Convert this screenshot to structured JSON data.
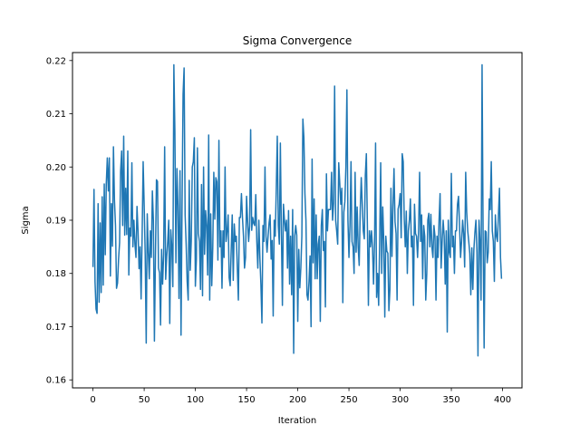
{
  "chart_data": {
    "type": "line",
    "title": "Sigma Convergence",
    "xlabel": "Iteration",
    "ylabel": "Sigma",
    "xlim": [
      -20,
      419
    ],
    "ylim": [
      0.1585,
      0.2215
    ],
    "xticks": [
      0,
      50,
      100,
      150,
      200,
      250,
      300,
      350,
      400
    ],
    "yticks": [
      0.16,
      0.17,
      0.18,
      0.19,
      0.2,
      0.21,
      0.22
    ],
    "ytick_labels": [
      "0.16",
      "0.17",
      "0.18",
      "0.19",
      "0.20",
      "0.21",
      "0.22"
    ],
    "grid": false,
    "legend": "none",
    "color": "#1f77b4",
    "series": [
      {
        "x_start": 0,
        "x_step": 1,
        "values": [
          0.1812,
          0.1958,
          0.1784,
          0.1733,
          0.1725,
          0.1931,
          0.1746,
          0.1895,
          0.1764,
          0.1944,
          0.1778,
          0.1968,
          0.1835,
          0.1969,
          0.2017,
          0.1955,
          0.2017,
          0.1795,
          0.1931,
          0.1851,
          0.2038,
          0.1937,
          0.189,
          0.1772,
          0.1782,
          0.1827,
          0.1858,
          0.1993,
          0.203,
          0.189,
          0.2058,
          0.1872,
          0.196,
          0.1873,
          0.203,
          0.1797,
          0.1885,
          0.187,
          0.2008,
          0.185,
          0.19,
          0.1855,
          0.183,
          0.1926,
          0.188,
          0.1809,
          0.185,
          0.1752,
          0.187,
          0.201,
          0.1928,
          0.1835,
          0.1669,
          0.1912,
          0.1842,
          0.179,
          0.188,
          0.183,
          0.1955,
          0.19,
          0.1673,
          0.1832,
          0.1976,
          0.1973,
          0.181,
          0.1801,
          0.1703,
          0.1845,
          0.178,
          0.1835,
          0.2038,
          0.1789,
          0.1832,
          0.186,
          0.19,
          0.1706,
          0.1882,
          0.185,
          0.1775,
          0.2192,
          0.2066,
          0.182,
          0.1997,
          0.1928,
          0.1753,
          0.1993,
          0.1684,
          0.193,
          0.2137,
          0.2186,
          0.191,
          0.1855,
          0.1785,
          0.175,
          0.1975,
          0.1806,
          0.1861,
          0.2,
          0.201,
          0.2055,
          0.1776,
          0.1827,
          0.2036,
          0.1875,
          0.186,
          0.177,
          0.1967,
          0.1758,
          0.2,
          0.1836,
          0.1918,
          0.189,
          0.1797,
          0.206,
          0.175,
          0.1912,
          0.1777,
          0.185,
          0.199,
          0.1902,
          0.198,
          0.1972,
          0.1825,
          0.205,
          0.185,
          0.188,
          0.1772,
          0.188,
          0.183,
          0.2,
          0.186,
          0.188,
          0.191,
          0.1792,
          0.1777,
          0.1845,
          0.191,
          0.1787,
          0.1893,
          0.186,
          0.187,
          0.1808,
          0.175,
          0.1905,
          0.1905,
          0.195,
          0.1905,
          0.187,
          0.181,
          0.183,
          0.1945,
          0.19,
          0.186,
          0.1889,
          0.207,
          0.1881,
          0.1905,
          0.1894,
          0.189,
          0.1948,
          0.186,
          0.181,
          0.19,
          0.183,
          0.178,
          0.1707,
          0.189,
          0.186,
          0.2,
          0.187,
          0.184,
          0.187,
          0.1895,
          0.191,
          0.1827,
          0.1862,
          0.172,
          0.19,
          0.187,
          0.1957,
          0.2058,
          0.189,
          0.1855,
          0.2045,
          0.188,
          0.174,
          0.193,
          0.19,
          0.188,
          0.19,
          0.181,
          0.1918,
          0.178,
          0.187,
          0.176,
          0.192,
          0.165,
          0.187,
          0.189,
          0.1872,
          0.171,
          0.1845,
          0.1773,
          0.181,
          0.187,
          0.209,
          0.2055,
          0.195,
          0.19,
          0.176,
          0.175,
          0.1785,
          0.1833,
          0.17,
          0.2015,
          0.182,
          0.194,
          0.179,
          0.191,
          0.179,
          0.1855,
          0.187,
          0.171,
          0.189,
          0.192,
          0.1843,
          0.186,
          0.1737,
          0.1987,
          0.188,
          0.192,
          0.192,
          0.192,
          0.199,
          0.19,
          0.1932,
          0.2152,
          0.19,
          0.188,
          0.1855,
          0.2008,
          0.197,
          0.193,
          0.196,
          0.1745,
          0.1915,
          0.1935,
          0.2,
          0.2145,
          0.19,
          0.183,
          0.189,
          0.201,
          0.186,
          0.185,
          0.18,
          0.199,
          0.184,
          0.1925,
          0.185,
          0.1815,
          0.1917,
          0.198,
          0.193,
          0.188,
          0.1865,
          0.1985,
          0.2025,
          0.189,
          0.174,
          0.188,
          0.185,
          0.188,
          0.185,
          0.178,
          0.1857,
          0.2045,
          0.1755,
          0.18,
          0.174,
          0.186,
          0.2008,
          0.18,
          0.1925,
          0.186,
          0.1718,
          0.187,
          0.1842,
          0.1838,
          0.173,
          0.177,
          0.196,
          0.1832,
          0.1927,
          0.1997,
          0.1897,
          0.1875,
          0.175,
          0.1921,
          0.193,
          0.195,
          0.1867,
          0.2025,
          0.201,
          0.1902,
          0.185,
          0.1917,
          0.18,
          0.188,
          0.19,
          0.194,
          0.185,
          0.187,
          0.174,
          0.193,
          0.1875,
          0.187,
          0.183,
          0.188,
          0.199,
          0.186,
          0.191,
          0.179,
          0.189,
          0.187,
          0.175,
          0.18,
          0.19,
          0.1913,
          0.185,
          0.1911,
          0.185,
          0.183,
          0.189,
          0.187,
          0.175,
          0.187,
          0.183,
          0.19,
          0.195,
          0.181,
          0.186,
          0.19,
          0.187,
          0.178,
          0.188,
          0.169,
          0.19,
          0.184,
          0.183,
          0.1988,
          0.185,
          0.187,
          0.18,
          0.188,
          0.188,
          0.193,
          0.1945,
          0.189,
          0.183,
          0.186,
          0.19,
          0.1875,
          0.1812,
          0.199,
          0.1915,
          0.188,
          0.186,
          0.1838,
          0.176,
          0.1848,
          0.177,
          0.1845,
          0.1877,
          0.19,
          0.184,
          0.1645,
          0.19,
          0.186,
          0.175,
          0.2192,
          0.188,
          0.166,
          0.188,
          0.1878,
          0.182,
          0.184,
          0.194,
          0.192,
          0.201,
          0.188,
          0.186,
          0.1785,
          0.191,
          0.187,
          0.186,
          0.191,
          0.196,
          0.183,
          0.179
        ]
      }
    ]
  }
}
